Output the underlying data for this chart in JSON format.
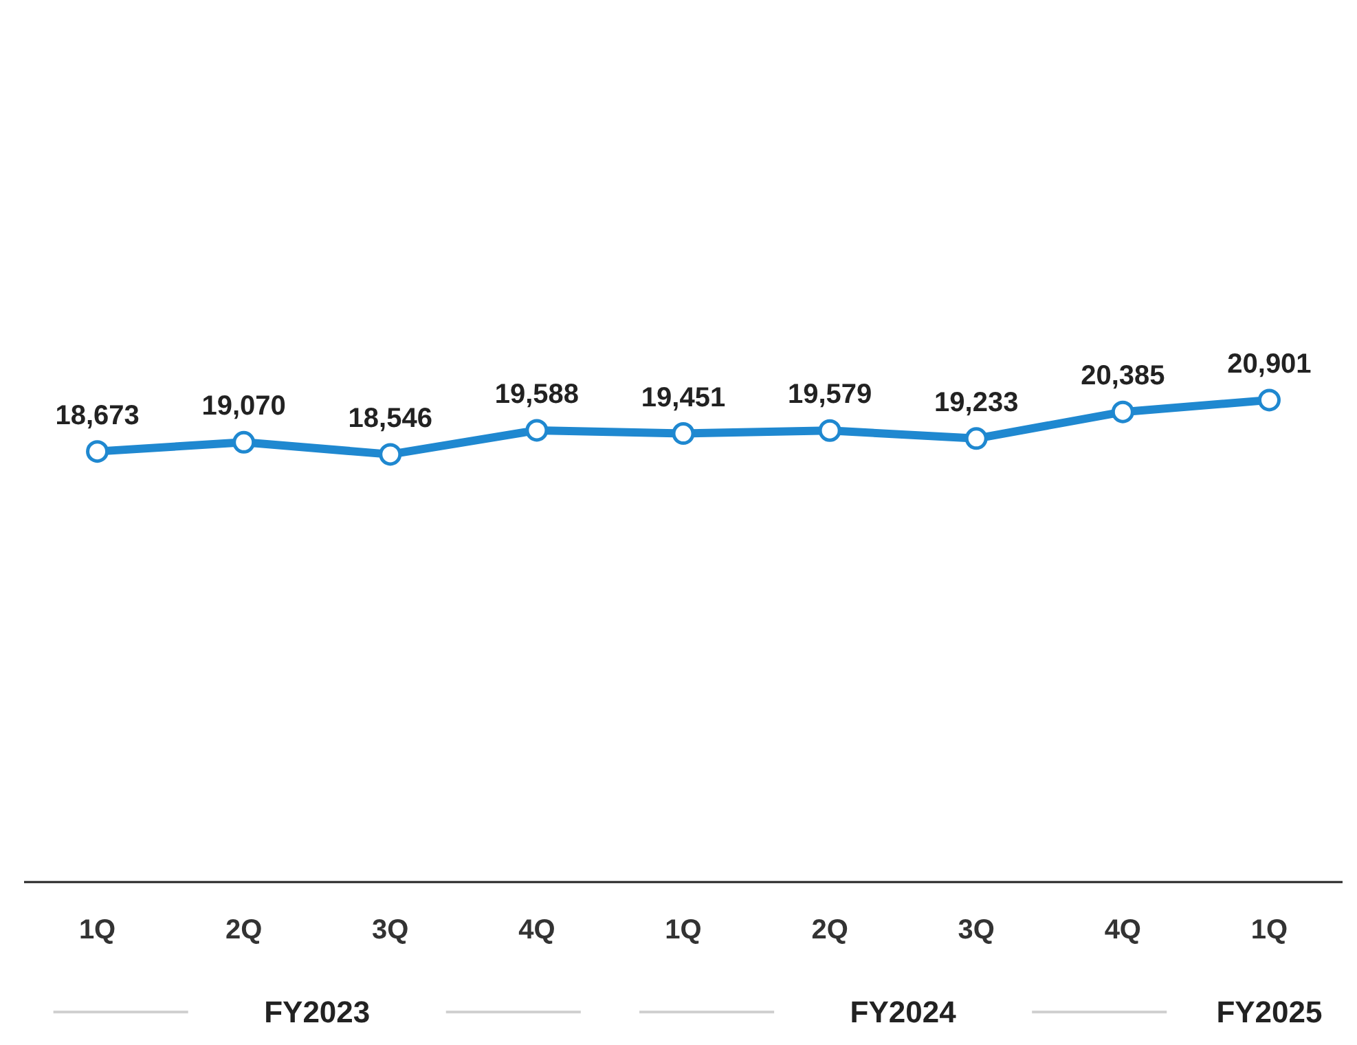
{
  "chart_data": {
    "type": "line",
    "categories": [
      "1Q",
      "2Q",
      "3Q",
      "4Q",
      "1Q",
      "2Q",
      "3Q",
      "4Q",
      "1Q"
    ],
    "values": [
      18673,
      19070,
      18546,
      19588,
      19451,
      19579,
      19233,
      20385,
      20901
    ],
    "value_labels": [
      "18,673",
      "19,070",
      "18,546",
      "19,588",
      "19,451",
      "19,579",
      "19,233",
      "20,385",
      "20,901"
    ],
    "color": "#1f88d0",
    "tick_labels": "x",
    "marker": "circle",
    "annotations": [
      "FY2023",
      "FY2024",
      "FY2025"
    ]
  }
}
